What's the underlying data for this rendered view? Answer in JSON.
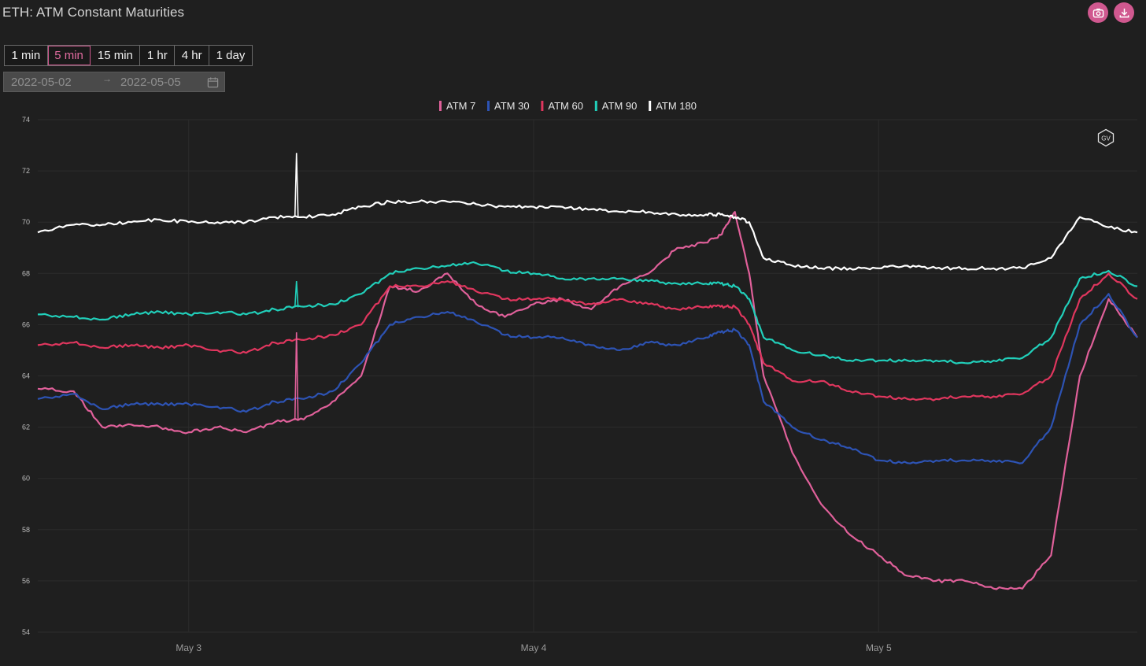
{
  "header": {
    "title": "ETH: ATM Constant Maturities",
    "camera_icon": "camera-icon",
    "download_icon": "download-icon",
    "accent_color": "#d0588f"
  },
  "intervals": {
    "options": [
      "1 min",
      "5 min",
      "15 min",
      "1 hr",
      "4 hr",
      "1 day"
    ],
    "selected": "5 min"
  },
  "date_range": {
    "start": "2022-05-02",
    "separator": "→",
    "end": "2022-05-05",
    "icon": "calendar-icon"
  },
  "watermark": "GV",
  "chart_data": {
    "type": "line",
    "title": "",
    "xlabel": "",
    "ylabel": "",
    "ylim": [
      54,
      74
    ],
    "yticks": [
      54,
      56,
      58,
      60,
      62,
      64,
      66,
      68,
      70,
      72,
      74
    ],
    "xlim": [
      "2022-05-02 13:30",
      "2022-05-05 18:00"
    ],
    "x_tick_labels": [
      "May 3",
      "May 4",
      "May 5"
    ],
    "x_tick_dates": [
      "2022-05-03 00:00",
      "2022-05-04 00:00",
      "2022-05-05 00:00"
    ],
    "grid": true,
    "legend_position": "top-center",
    "x": [
      "2022-05-02 13:30",
      "2022-05-02 16:00",
      "2022-05-02 18:00",
      "2022-05-02 20:00",
      "2022-05-02 22:00",
      "2022-05-03 00:00",
      "2022-05-03 02:00",
      "2022-05-03 04:00",
      "2022-05-03 06:00",
      "2022-05-03 08:00",
      "2022-05-03 10:00",
      "2022-05-03 12:00",
      "2022-05-03 14:00",
      "2022-05-03 16:00",
      "2022-05-03 18:00",
      "2022-05-03 20:00",
      "2022-05-03 22:00",
      "2022-05-04 00:00",
      "2022-05-04 02:00",
      "2022-05-04 04:00",
      "2022-05-04 06:00",
      "2022-05-04 08:00",
      "2022-05-04 10:00",
      "2022-05-04 12:00",
      "2022-05-04 13:00",
      "2022-05-04 14:00",
      "2022-05-04 15:00",
      "2022-05-04 16:00",
      "2022-05-04 18:00",
      "2022-05-04 20:00",
      "2022-05-04 22:00",
      "2022-05-05 00:00",
      "2022-05-05 02:00",
      "2022-05-05 04:00",
      "2022-05-05 06:00",
      "2022-05-05 08:00",
      "2022-05-05 10:00",
      "2022-05-05 12:00",
      "2022-05-05 14:00",
      "2022-05-05 16:00",
      "2022-05-05 18:00"
    ],
    "series": [
      {
        "name": "ATM 7",
        "color": "#e0609a",
        "values": [
          63.5,
          63.4,
          62.0,
          62.1,
          62.0,
          61.8,
          62.0,
          61.8,
          62.2,
          62.3,
          63.0,
          64.0,
          67.5,
          67.3,
          68.0,
          66.8,
          66.3,
          66.8,
          67.0,
          66.6,
          67.5,
          68.0,
          69.0,
          69.2,
          69.5,
          70.4,
          68.0,
          64.0,
          61.0,
          59.0,
          57.8,
          57.0,
          56.2,
          56.0,
          56.0,
          55.7,
          55.7,
          57.0,
          64.0,
          67.0,
          65.5
        ]
      },
      {
        "name": "ATM 30",
        "color": "#2d53b4",
        "values": [
          63.1,
          63.3,
          62.7,
          62.9,
          62.9,
          62.9,
          62.8,
          62.6,
          63.0,
          63.1,
          63.4,
          64.5,
          66.0,
          66.3,
          66.5,
          66.1,
          65.6,
          65.5,
          65.5,
          65.2,
          65.0,
          65.3,
          65.2,
          65.5,
          65.7,
          65.8,
          65.2,
          63.0,
          62.0,
          61.5,
          61.2,
          60.7,
          60.6,
          60.7,
          60.7,
          60.7,
          60.6,
          62.0,
          66.0,
          67.2,
          65.5
        ]
      },
      {
        "name": "ATM 60",
        "color": "#e0365e",
        "values": [
          65.2,
          65.3,
          65.1,
          65.2,
          65.1,
          65.2,
          65.0,
          64.9,
          65.3,
          65.4,
          65.6,
          66.0,
          67.5,
          67.5,
          67.7,
          67.3,
          67.0,
          67.0,
          67.0,
          66.8,
          67.0,
          66.8,
          66.6,
          66.7,
          66.7,
          66.7,
          66.0,
          64.5,
          63.8,
          63.8,
          63.4,
          63.2,
          63.1,
          63.1,
          63.2,
          63.2,
          63.3,
          64.0,
          67.0,
          68.0,
          67.0
        ]
      },
      {
        "name": "ATM 90",
        "color": "#21cfba",
        "values": [
          66.4,
          66.3,
          66.2,
          66.4,
          66.5,
          66.4,
          66.5,
          66.4,
          66.6,
          66.7,
          66.8,
          67.2,
          68.0,
          68.2,
          68.3,
          68.4,
          68.1,
          68.0,
          67.8,
          67.8,
          67.8,
          67.7,
          67.6,
          67.6,
          67.6,
          67.5,
          67.0,
          65.5,
          65.0,
          64.8,
          64.6,
          64.6,
          64.6,
          64.6,
          64.5,
          64.6,
          64.7,
          65.5,
          67.8,
          68.1,
          67.5
        ]
      },
      {
        "name": "ATM 180",
        "color": "#ffffff",
        "values": [
          69.6,
          69.9,
          69.9,
          70.0,
          70.1,
          70.0,
          70.0,
          70.0,
          70.2,
          70.2,
          70.3,
          70.6,
          70.8,
          70.8,
          70.8,
          70.7,
          70.6,
          70.6,
          70.6,
          70.5,
          70.4,
          70.4,
          70.3,
          70.3,
          70.3,
          70.2,
          70.0,
          68.6,
          68.3,
          68.2,
          68.2,
          68.2,
          68.3,
          68.2,
          68.2,
          68.2,
          68.2,
          68.6,
          70.2,
          69.8,
          69.6
        ]
      }
    ],
    "spikes": [
      {
        "series": "ATM 180",
        "x": "2022-05-03 07:30",
        "value": 72.7
      },
      {
        "series": "ATM 90",
        "x": "2022-05-03 07:30",
        "value": 67.7
      },
      {
        "series": "ATM 7",
        "x": "2022-05-03 07:30",
        "value": 65.7
      }
    ]
  }
}
